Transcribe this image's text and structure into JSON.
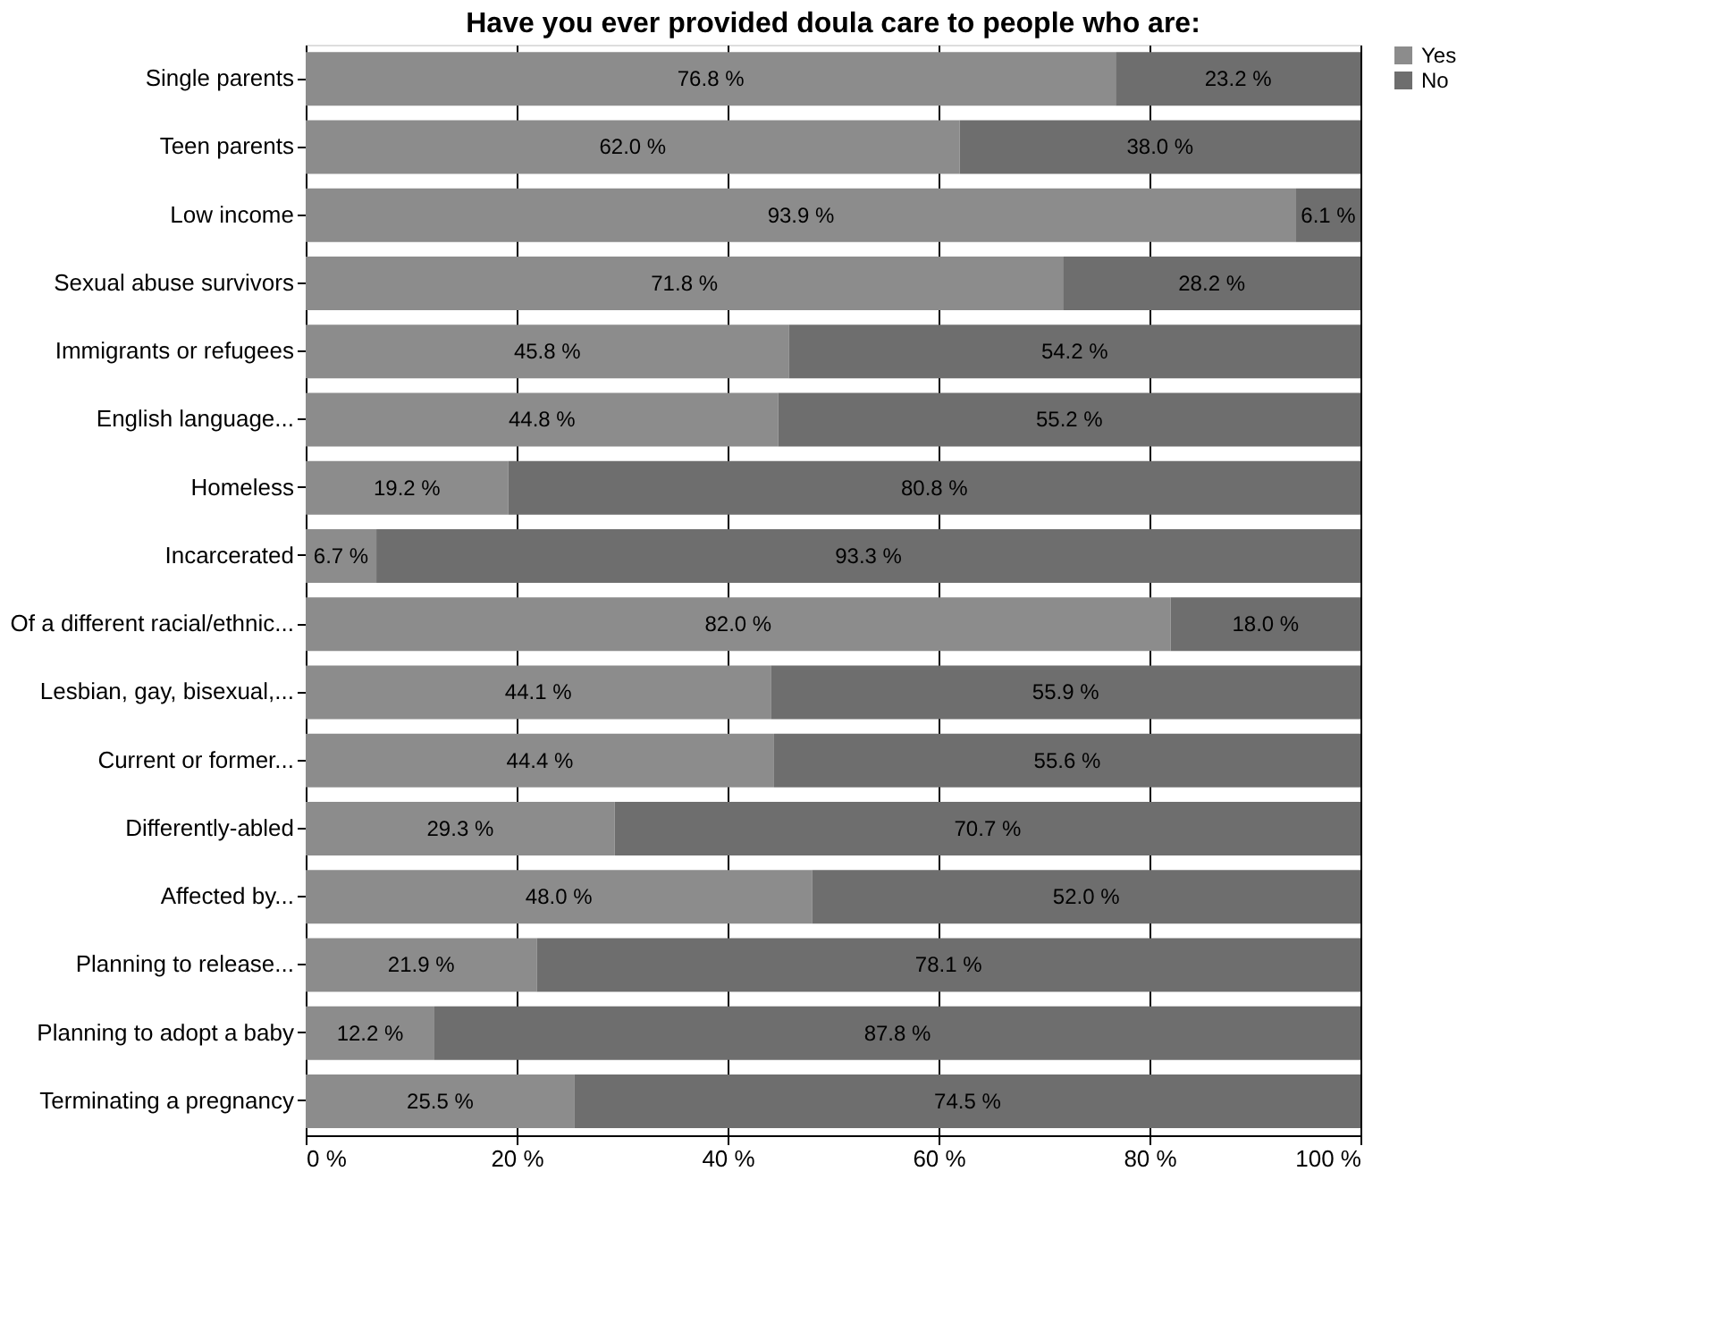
{
  "chart_data": {
    "type": "bar",
    "orientation": "horizontal",
    "stacked": true,
    "title": "Have you ever provided doula care to people who are:",
    "categories": [
      "Single parents",
      "Teen parents",
      "Low income",
      "Sexual abuse survivors",
      "Immigrants or refugees",
      "English language...",
      "Homeless",
      "Incarcerated",
      "Of a different racial/ethnic...",
      "Lesbian, gay, bisexual,...",
      "Current or former...",
      "Differently-abled",
      "Affected by...",
      "Planning to release...",
      "Planning to adopt a baby",
      "Terminating a pregnancy"
    ],
    "series": [
      {
        "name": "Yes",
        "color": "#8c8c8c",
        "values": [
          76.8,
          62.0,
          93.9,
          71.8,
          45.8,
          44.8,
          19.2,
          6.7,
          82.0,
          44.1,
          44.4,
          29.3,
          48.0,
          21.9,
          12.2,
          25.5
        ],
        "value_labels": [
          "76.8 %",
          "62.0 %",
          "93.9 %",
          "71.8 %",
          "45.8 %",
          "44.8 %",
          "19.2 %",
          "6.7 %",
          "82.0 %",
          "44.1 %",
          "44.4 %",
          "29.3 %",
          "48.0 %",
          "21.9 %",
          "12.2 %",
          "25.5 %"
        ]
      },
      {
        "name": "No",
        "color": "#6e6e6e",
        "values": [
          23.2,
          38.0,
          6.1,
          28.2,
          54.2,
          55.2,
          80.8,
          93.3,
          18.0,
          55.9,
          55.6,
          70.7,
          52.0,
          78.1,
          87.8,
          74.5
        ],
        "value_labels": [
          "23.2 %",
          "38.0 %",
          "6.1 %",
          "28.2 %",
          "54.2 %",
          "55.2 %",
          "80.8 %",
          "93.3 %",
          "18.0 %",
          "55.9 %",
          "55.6 %",
          "70.7 %",
          "52.0 %",
          "78.1 %",
          "87.8 %",
          "74.5 %"
        ]
      }
    ],
    "xlim": [
      0,
      100
    ],
    "xticks": [
      {
        "value": 0,
        "label": "0 %"
      },
      {
        "value": 20,
        "label": "20 %"
      },
      {
        "value": 40,
        "label": "40 %"
      },
      {
        "value": 60,
        "label": "60 %"
      },
      {
        "value": 80,
        "label": "80 %"
      },
      {
        "value": 100,
        "label": "100 %"
      }
    ],
    "grid": "x",
    "legend": "right"
  }
}
